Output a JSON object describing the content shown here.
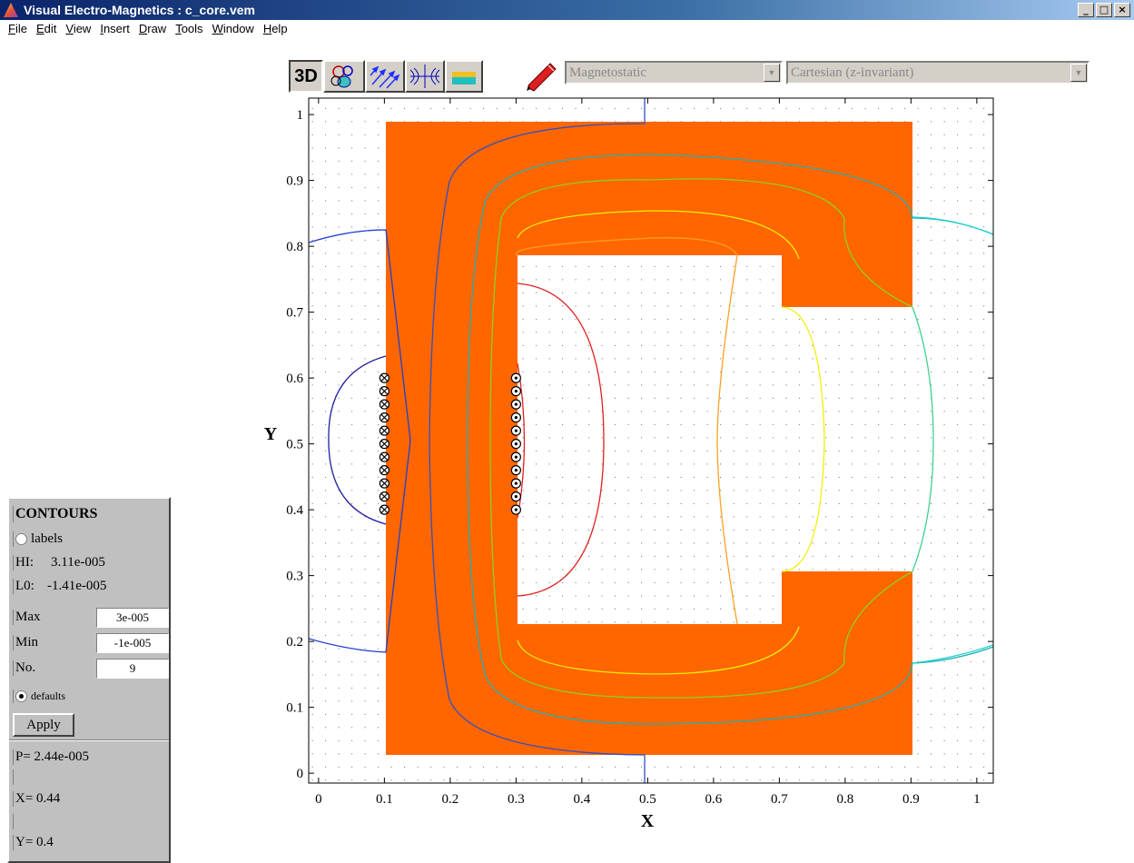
{
  "window": {
    "title": "Visual Electro-Magnetics : c_core.vem",
    "minimize": "_",
    "maximize": "□",
    "close": "×"
  },
  "menu": [
    "File",
    "Edit",
    "View",
    "Insert",
    "Draw",
    "Tools",
    "Window",
    "Help"
  ],
  "toolbar": {
    "btn_3d": "3D",
    "analysis_type": "Magnetostatic",
    "coordinate_system": "Cartesian (z-invariant)",
    "icons": [
      "mesh-icon",
      "field-vectors-icon",
      "field-lines-icon",
      "material-icon",
      "pencil-icon"
    ]
  },
  "contours_panel": {
    "heading": "CONTOURS",
    "labels_option": "labels",
    "hi_label": "HI:",
    "hi_value": "3.11e-005",
    "lo_label": "L0:",
    "lo_value": "-1.41e-005",
    "max_label": "Max",
    "max_value": "3e-005",
    "min_label": "Min",
    "min_value": "-1e-005",
    "no_label": "No.",
    "no_value": "9",
    "defaults_option": "defaults",
    "apply_label": "Apply",
    "p_readout": "P=  2.44e-005",
    "x_readout": "X=    0.44",
    "y_readout": "Y=     0.4"
  },
  "plot": {
    "xlabel": "X",
    "ylabel": "Y",
    "xticks": [
      "0",
      "0.1",
      "0.2",
      "0.3",
      "0.4",
      "0.5",
      "0.6",
      "0.7",
      "0.8",
      "0.9",
      "1"
    ],
    "yticks": [
      "0",
      "0.1",
      "0.2",
      "0.3",
      "0.4",
      "0.5",
      "0.6",
      "0.7",
      "0.8",
      "0.9",
      "1"
    ],
    "xlim": [
      -0.015,
      1.025
    ],
    "ylim": [
      -0.015,
      1.025
    ],
    "colors": {
      "core": "#ff6600",
      "background": "#ffffff",
      "grid_dots": "#666666"
    }
  }
}
